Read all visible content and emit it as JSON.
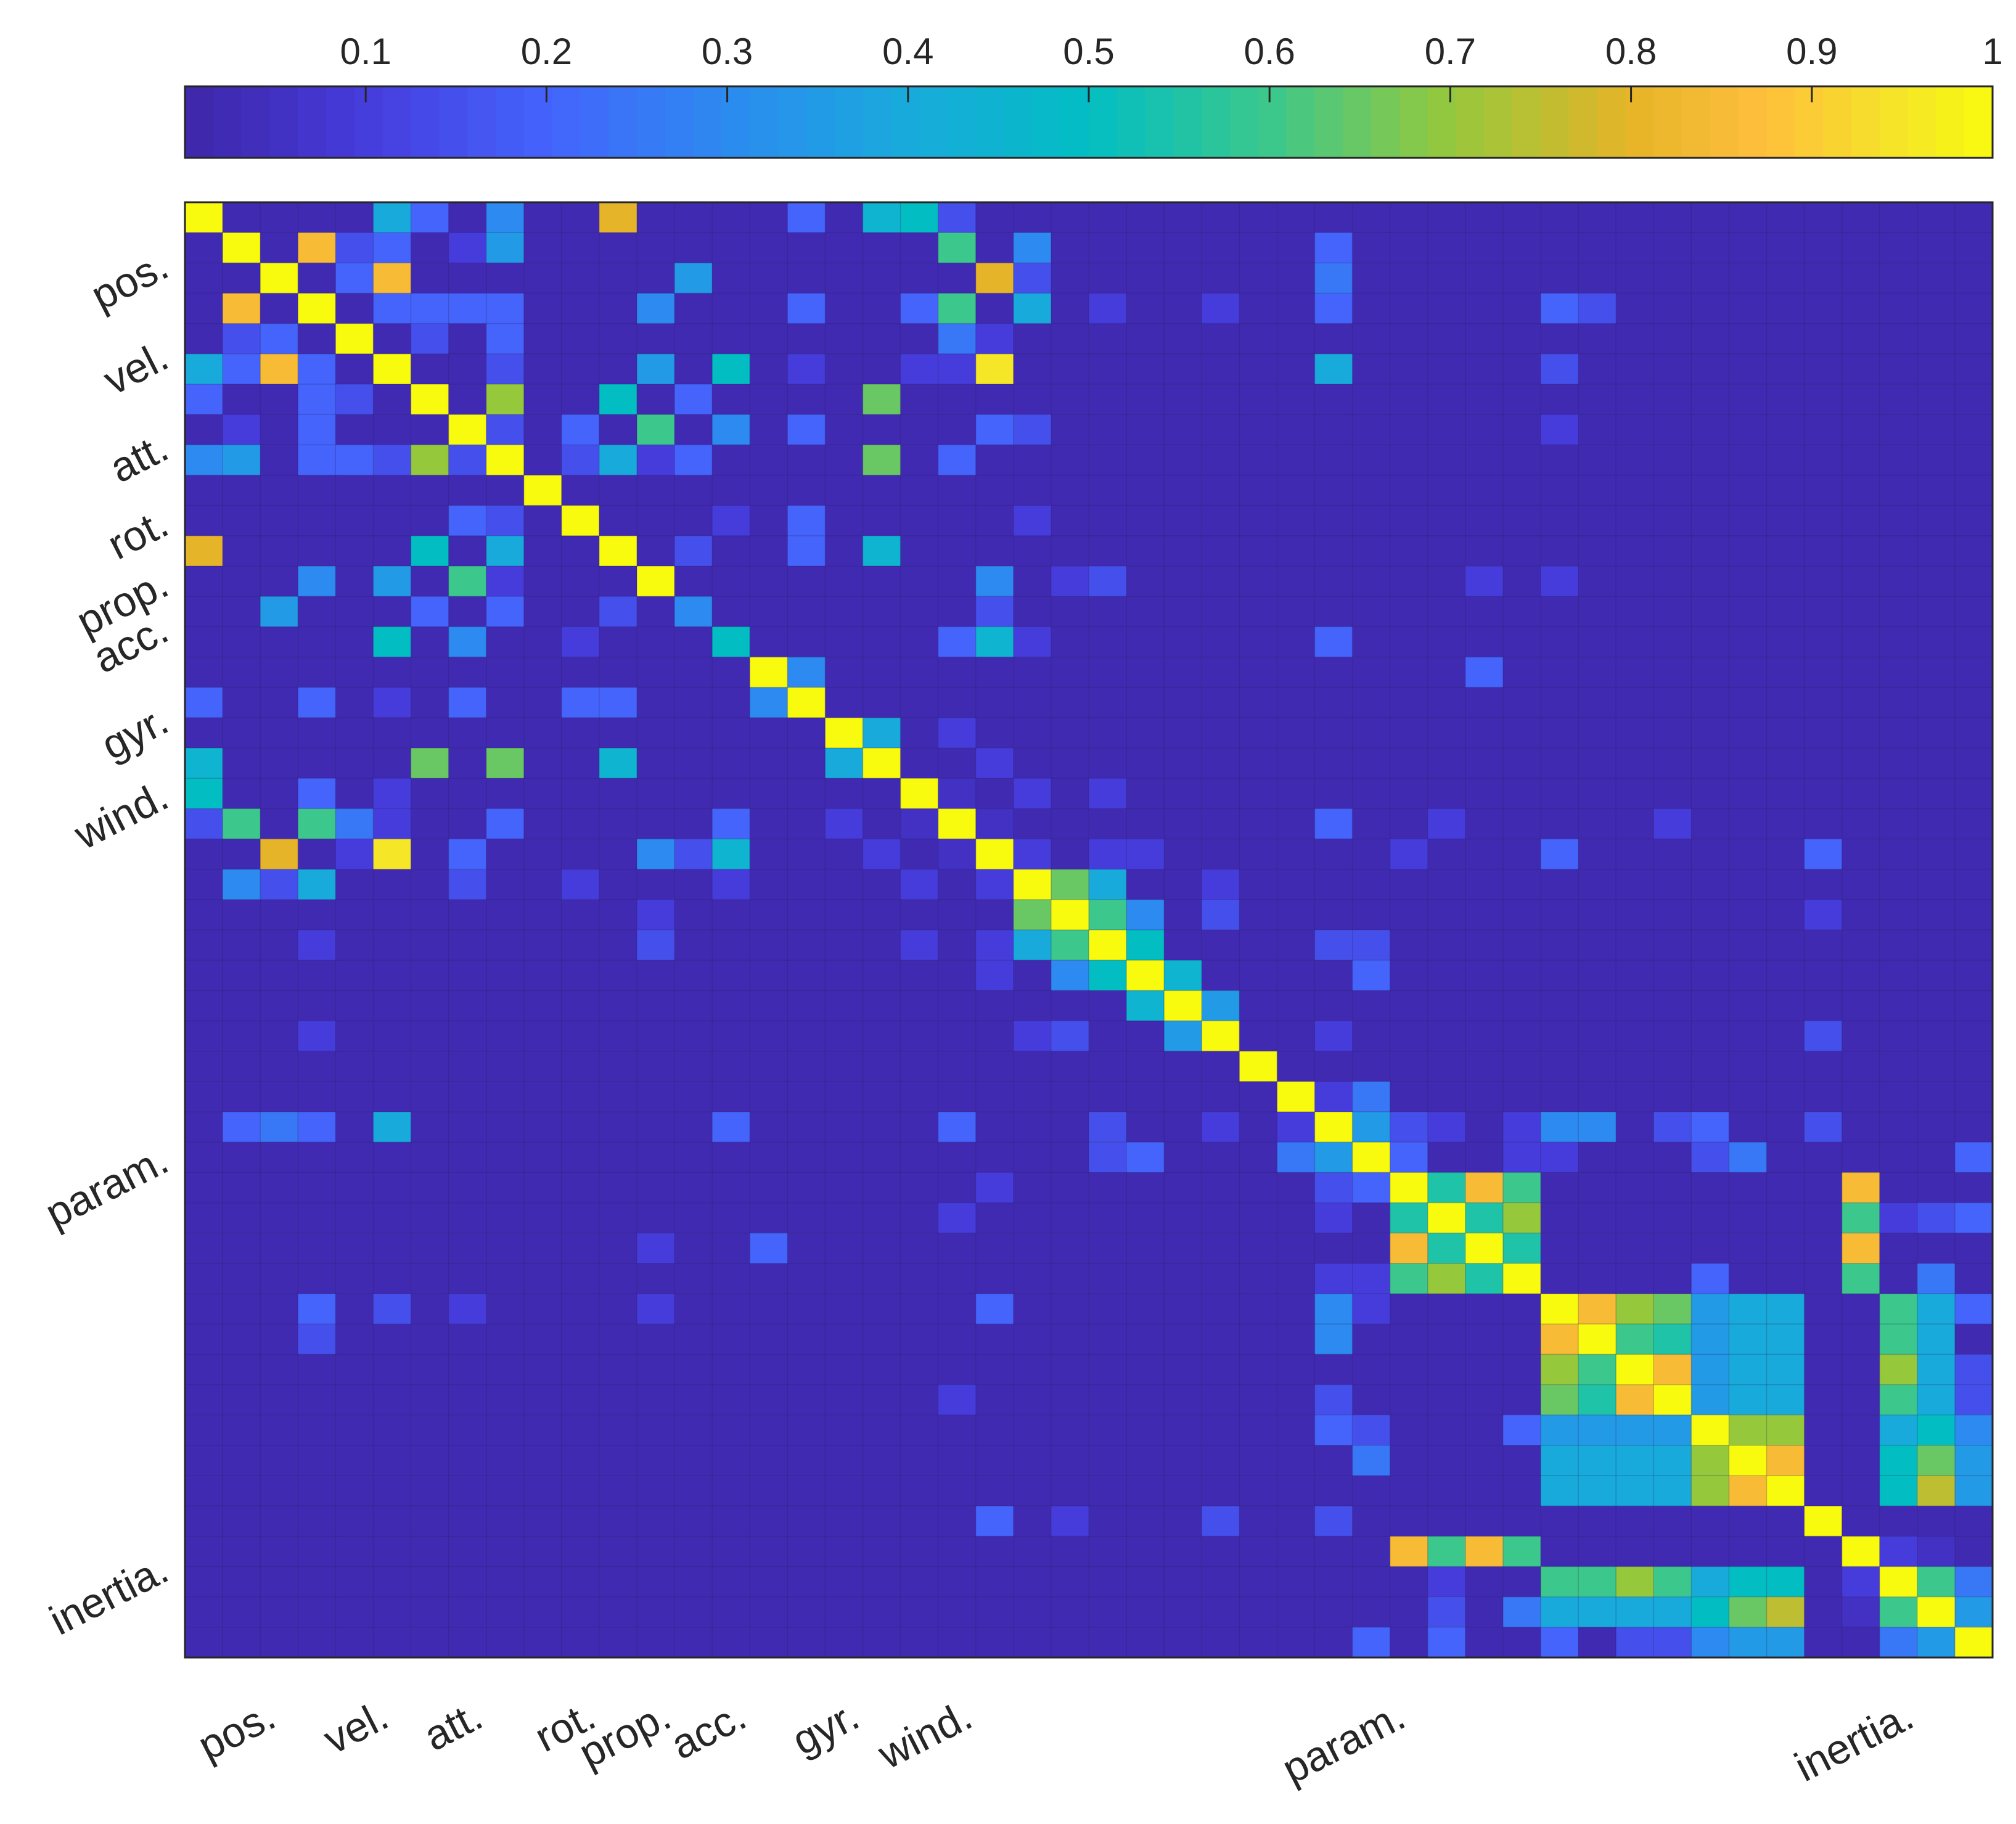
{
  "chart_data": {
    "type": "heatmap",
    "title": "",
    "matrix_size": 48,
    "clim": [
      0,
      1
    ],
    "colormap": "parula",
    "colorbar": {
      "placement": "top",
      "ticks": [
        "0.1",
        "0.2",
        "0.3",
        "0.4",
        "0.5",
        "0.6",
        "0.7",
        "0.8",
        "0.9",
        "1"
      ],
      "tick_values": [
        0.1,
        0.2,
        0.3,
        0.4,
        0.5,
        0.6,
        0.7,
        0.8,
        0.9,
        1.0
      ]
    },
    "row_labels": [
      {
        "label": "pos.",
        "index": 1.5
      },
      {
        "label": "vel.",
        "index": 4.5
      },
      {
        "label": "att.",
        "index": 7.5
      },
      {
        "label": "rot.",
        "index": 10.0
      },
      {
        "label": "prop.",
        "index": 12.0
      },
      {
        "label": "acc.",
        "index": 13.5
      },
      {
        "label": "gyr.",
        "index": 16.5
      },
      {
        "label": "wind.",
        "index": 19.0
      },
      {
        "label": "param.",
        "index": 31.0
      },
      {
        "label": "inertia.",
        "index": 44.5
      }
    ],
    "col_labels": [
      {
        "label": "pos.",
        "index": 1.0
      },
      {
        "label": "vel.",
        "index": 4.0
      },
      {
        "label": "att.",
        "index": 6.5
      },
      {
        "label": "rot.",
        "index": 9.5
      },
      {
        "label": "prop.",
        "index": 11.5
      },
      {
        "label": "acc.",
        "index": 13.5
      },
      {
        "label": "gyr.",
        "index": 16.5
      },
      {
        "label": "wind.",
        "index": 19.5
      },
      {
        "label": "param.",
        "index": 31.0
      },
      {
        "label": "inertia.",
        "index": 44.5
      }
    ],
    "base_value": 0.02,
    "cells": [
      [
        0,
        5,
        0.4
      ],
      [
        0,
        6,
        0.2
      ],
      [
        0,
        8,
        0.3
      ],
      [
        0,
        11,
        0.8
      ],
      [
        0,
        16,
        0.2
      ],
      [
        0,
        18,
        0.45
      ],
      [
        0,
        19,
        0.5
      ],
      [
        0,
        20,
        0.15
      ],
      [
        1,
        3,
        0.85
      ],
      [
        1,
        4,
        0.15
      ],
      [
        1,
        5,
        0.2
      ],
      [
        1,
        7,
        0.1
      ],
      [
        1,
        8,
        0.35
      ],
      [
        1,
        20,
        0.6
      ],
      [
        1,
        22,
        0.3
      ],
      [
        1,
        30,
        0.2
      ],
      [
        2,
        4,
        0.2
      ],
      [
        2,
        5,
        0.85
      ],
      [
        2,
        13,
        0.35
      ],
      [
        2,
        21,
        0.8
      ],
      [
        2,
        22,
        0.15
      ],
      [
        2,
        30,
        0.25
      ],
      [
        3,
        5,
        0.2
      ],
      [
        3,
        6,
        0.2
      ],
      [
        3,
        7,
        0.2
      ],
      [
        3,
        8,
        0.2
      ],
      [
        3,
        12,
        0.3
      ],
      [
        3,
        16,
        0.2
      ],
      [
        3,
        19,
        0.2
      ],
      [
        3,
        20,
        0.6
      ],
      [
        3,
        22,
        0.4
      ],
      [
        3,
        24,
        0.1
      ],
      [
        3,
        27,
        0.1
      ],
      [
        3,
        30,
        0.2
      ],
      [
        3,
        36,
        0.2
      ],
      [
        3,
        37,
        0.15
      ],
      [
        4,
        6,
        0.15
      ],
      [
        4,
        8,
        0.2
      ],
      [
        4,
        20,
        0.25
      ],
      [
        4,
        21,
        0.1
      ],
      [
        5,
        8,
        0.15
      ],
      [
        5,
        12,
        0.35
      ],
      [
        5,
        14,
        0.5
      ],
      [
        5,
        19,
        0.1
      ],
      [
        5,
        20,
        0.1
      ],
      [
        5,
        21,
        0.95
      ],
      [
        5,
        30,
        0.4
      ],
      [
        5,
        36,
        0.15
      ],
      [
        6,
        8,
        0.7
      ],
      [
        6,
        11,
        0.5
      ],
      [
        6,
        13,
        0.2
      ],
      [
        6,
        18,
        0.65
      ],
      [
        7,
        8,
        0.15
      ],
      [
        7,
        10,
        0.2
      ],
      [
        7,
        12,
        0.6
      ],
      [
        7,
        14,
        0.3
      ],
      [
        7,
        16,
        0.2
      ],
      [
        7,
        21,
        0.2
      ],
      [
        7,
        22,
        0.15
      ],
      [
        7,
        36,
        0.1
      ],
      [
        8,
        10,
        0.15
      ],
      [
        8,
        11,
        0.4
      ],
      [
        8,
        12,
        0.1
      ],
      [
        8,
        13,
        0.2
      ],
      [
        8,
        18,
        0.65
      ],
      [
        8,
        20,
        0.2
      ],
      [
        10,
        14,
        0.1
      ],
      [
        10,
        16,
        0.2
      ],
      [
        10,
        22,
        0.1
      ],
      [
        11,
        13,
        0.15
      ],
      [
        11,
        16,
        0.2
      ],
      [
        11,
        18,
        0.45
      ],
      [
        12,
        21,
        0.3
      ],
      [
        12,
        23,
        0.1
      ],
      [
        12,
        24,
        0.15
      ],
      [
        12,
        34,
        0.1
      ],
      [
        12,
        36,
        0.1
      ],
      [
        13,
        13,
        0.3
      ],
      [
        13,
        21,
        0.15
      ],
      [
        14,
        14,
        0.5
      ],
      [
        14,
        20,
        0.2
      ],
      [
        14,
        21,
        0.45
      ],
      [
        14,
        22,
        0.1
      ],
      [
        14,
        30,
        0.2
      ],
      [
        16,
        15,
        0.3
      ],
      [
        17,
        18,
        0.4
      ],
      [
        17,
        20,
        0.1
      ],
      [
        18,
        21,
        0.1
      ],
      [
        19,
        20,
        0.05
      ],
      [
        19,
        22,
        0.1
      ],
      [
        19,
        24,
        0.1
      ],
      [
        20,
        21,
        0.05
      ],
      [
        20,
        30,
        0.2
      ],
      [
        20,
        33,
        0.1
      ],
      [
        20,
        39,
        0.1
      ],
      [
        21,
        22,
        0.1
      ],
      [
        21,
        24,
        0.1
      ],
      [
        21,
        25,
        0.1
      ],
      [
        21,
        32,
        0.1
      ],
      [
        21,
        36,
        0.2
      ],
      [
        21,
        43,
        0.2
      ],
      [
        22,
        23,
        0.65
      ],
      [
        22,
        24,
        0.4
      ],
      [
        22,
        27,
        0.1
      ],
      [
        23,
        24,
        0.6
      ],
      [
        23,
        25,
        0.3
      ],
      [
        23,
        27,
        0.15
      ],
      [
        23,
        43,
        0.1
      ],
      [
        24,
        25,
        0.5
      ],
      [
        24,
        30,
        0.15
      ],
      [
        24,
        31,
        0.15
      ],
      [
        25,
        26,
        0.45
      ],
      [
        25,
        31,
        0.2
      ],
      [
        26,
        27,
        0.35
      ],
      [
        27,
        30,
        0.1
      ],
      [
        27,
        43,
        0.15
      ],
      [
        29,
        30,
        0.1
      ],
      [
        29,
        31,
        0.25
      ],
      [
        30,
        31,
        0.35
      ],
      [
        30,
        32,
        0.15
      ],
      [
        30,
        33,
        0.1
      ],
      [
        30,
        35,
        0.1
      ],
      [
        30,
        36,
        0.3
      ],
      [
        30,
        37,
        0.3
      ],
      [
        30,
        39,
        0.15
      ],
      [
        30,
        40,
        0.2
      ],
      [
        30,
        43,
        0.15
      ],
      [
        31,
        32,
        0.2
      ],
      [
        31,
        35,
        0.1
      ],
      [
        31,
        36,
        0.1
      ],
      [
        31,
        40,
        0.15
      ],
      [
        31,
        41,
        0.25
      ],
      [
        31,
        47,
        0.2
      ],
      [
        32,
        33,
        0.55
      ],
      [
        32,
        34,
        0.85
      ],
      [
        32,
        35,
        0.6
      ],
      [
        32,
        44,
        0.85
      ],
      [
        33,
        34,
        0.55
      ],
      [
        33,
        35,
        0.7
      ],
      [
        33,
        44,
        0.6
      ],
      [
        33,
        46,
        0.15
      ],
      [
        33,
        47,
        0.2
      ],
      [
        34,
        35,
        0.55
      ],
      [
        34,
        44,
        0.85
      ],
      [
        35,
        40,
        0.2
      ],
      [
        35,
        44,
        0.6
      ],
      [
        35,
        46,
        0.25
      ],
      [
        36,
        37,
        0.85
      ],
      [
        36,
        38,
        0.7
      ],
      [
        36,
        39,
        0.65
      ],
      [
        36,
        40,
        0.35
      ],
      [
        36,
        41,
        0.4
      ],
      [
        36,
        42,
        0.4
      ],
      [
        36,
        45,
        0.6
      ],
      [
        36,
        46,
        0.4
      ],
      [
        36,
        47,
        0.2
      ],
      [
        37,
        38,
        0.6
      ],
      [
        37,
        39,
        0.55
      ],
      [
        37,
        40,
        0.35
      ],
      [
        37,
        41,
        0.4
      ],
      [
        37,
        42,
        0.4
      ],
      [
        37,
        45,
        0.6
      ],
      [
        37,
        46,
        0.4
      ],
      [
        38,
        39,
        0.85
      ],
      [
        38,
        40,
        0.35
      ],
      [
        38,
        41,
        0.4
      ],
      [
        38,
        42,
        0.4
      ],
      [
        38,
        45,
        0.7
      ],
      [
        38,
        46,
        0.4
      ],
      [
        38,
        47,
        0.15
      ],
      [
        39,
        40,
        0.35
      ],
      [
        39,
        41,
        0.4
      ],
      [
        39,
        42,
        0.4
      ],
      [
        39,
        45,
        0.6
      ],
      [
        39,
        46,
        0.4
      ],
      [
        39,
        47,
        0.15
      ],
      [
        40,
        41,
        0.7
      ],
      [
        40,
        42,
        0.7
      ],
      [
        40,
        45,
        0.4
      ],
      [
        40,
        46,
        0.5
      ],
      [
        40,
        47,
        0.3
      ],
      [
        41,
        42,
        0.85
      ],
      [
        41,
        45,
        0.5
      ],
      [
        41,
        46,
        0.65
      ],
      [
        41,
        47,
        0.35
      ],
      [
        42,
        45,
        0.5
      ],
      [
        42,
        46,
        0.75
      ],
      [
        42,
        47,
        0.35
      ],
      [
        44,
        45,
        0.1
      ],
      [
        44,
        46,
        0.05
      ],
      [
        45,
        46,
        0.6
      ],
      [
        45,
        47,
        0.25
      ],
      [
        46,
        47,
        0.35
      ],
      [
        33,
        45,
        0.1
      ],
      [
        15,
        34,
        0.2
      ],
      [
        16,
        5,
        0.1
      ]
    ]
  }
}
